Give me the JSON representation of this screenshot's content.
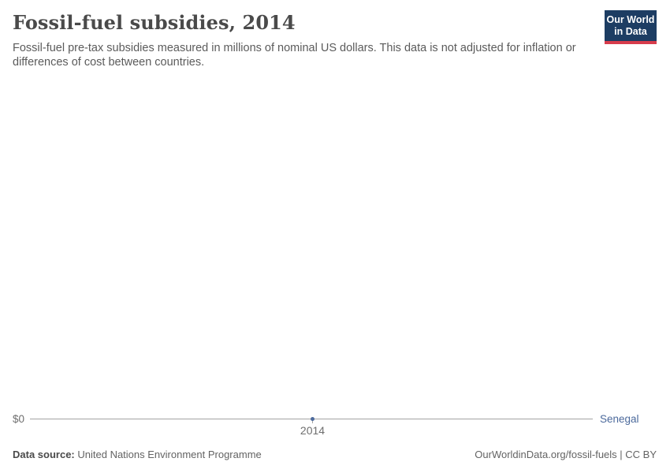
{
  "header": {
    "title": "Fossil-fuel subsidies, 2014",
    "subtitle": "Fossil-fuel pre-tax subsidies measured in millions of nominal US dollars. This data is not adjusted for inflation or differences of cost between countries."
  },
  "logo": {
    "line1": "Our World",
    "line2": "in Data"
  },
  "chart_data": {
    "type": "line",
    "title": "Fossil-fuel subsidies, 2014",
    "unit": "millions of nominal US dollars",
    "x": [
      2014
    ],
    "x_tick_labels": [
      "2014"
    ],
    "y_tick_labels": [
      "$0"
    ],
    "ylim": [
      0,
      0
    ],
    "grid": false,
    "legend_position": "right-of-line",
    "series": [
      {
        "name": "Senegal",
        "values": [
          0
        ],
        "color": "#4c6a9c"
      }
    ]
  },
  "axis": {
    "y_zero_label": "$0",
    "x_tick_label": "2014",
    "entity_label": "Senegal"
  },
  "footer": {
    "source_label": "Data source:",
    "source_value": "United Nations Environment Programme",
    "attribution": "OurWorldinData.org/fossil-fuels | CC BY"
  },
  "colors": {
    "series_blue": "#4c6a9c",
    "axis_line": "#a3a3a3",
    "axis_label": "#6e6e6e",
    "title_text": "#4a4a4a",
    "subtitle_text": "#5b5b5b",
    "logo_navy": "#1d3d63",
    "logo_red": "#d73c4c",
    "background": "#ffffff"
  }
}
